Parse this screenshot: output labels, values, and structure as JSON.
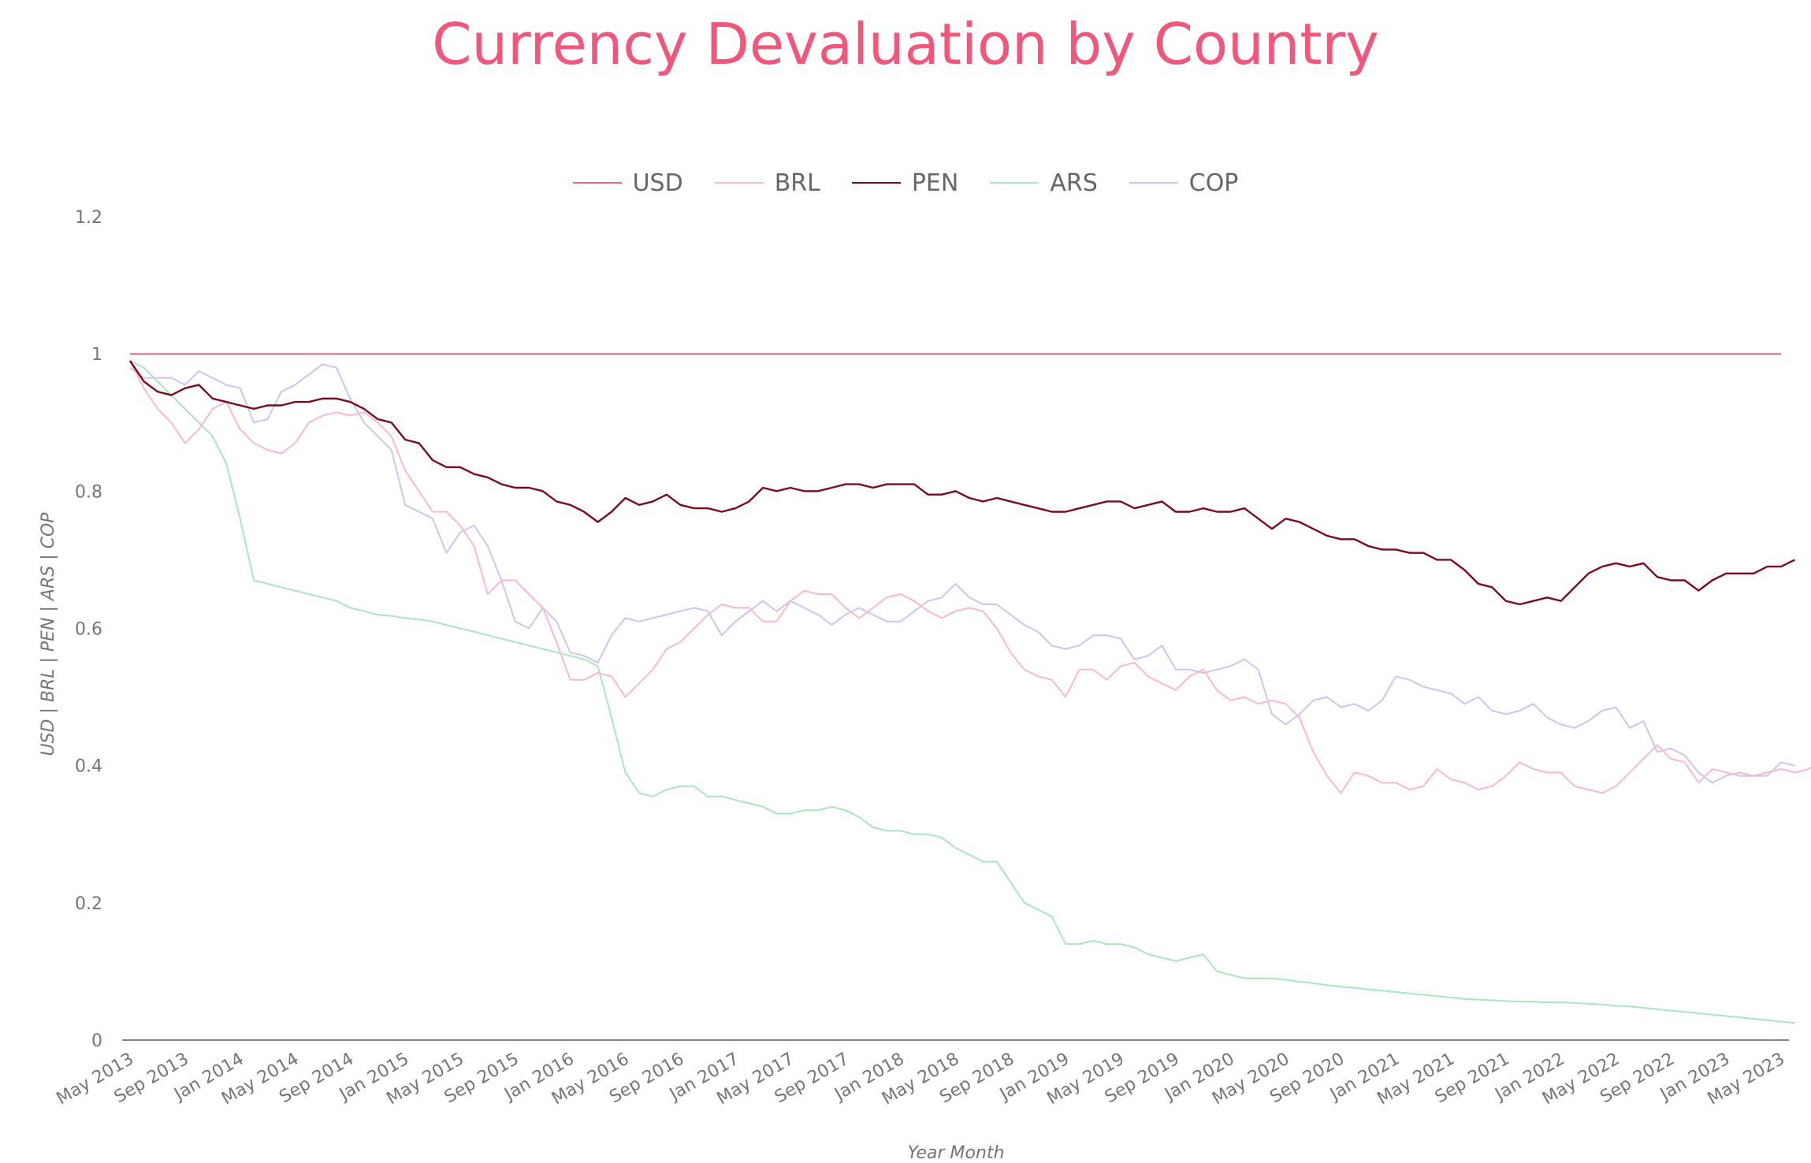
{
  "chart_data": {
    "type": "line",
    "title": "Currency Devaluation  by Country",
    "xlabel": "Year Month",
    "ylabel": "USD | BRL | PEN | ARS | COP",
    "ylim": [
      0,
      1.2
    ],
    "y_ticks": [
      "0",
      "0.2",
      "0.4",
      "0.6",
      "0.8",
      "1",
      "1.2"
    ],
    "grid": false,
    "legend_position": "top",
    "title_color": "#F0577A",
    "x_tick_labels": [
      "May 2013",
      "Sep 2013",
      "Jan 2014",
      "May 2014",
      "Sep 2014",
      "Jan 2015",
      "May 2015",
      "Sep 2015",
      "Jan 2016",
      "May 2016",
      "Sep 2016",
      "Jan 2017",
      "May 2017",
      "Sep 2017",
      "Jan 2018",
      "May 2018",
      "Sep 2018",
      "Jan 2019",
      "May 2019",
      "Sep 2019",
      "Jan 2020",
      "May 2020",
      "Sep 2020",
      "Jan 2021",
      "May 2021",
      "Sep 2021",
      "Jan 2022",
      "May 2022",
      "Sep 2022",
      "Jan 2023",
      "May 2023"
    ],
    "series": [
      {
        "name": "USD",
        "color": "#EC6685",
        "values": [
          1,
          1,
          1,
          1,
          1,
          1,
          1,
          1,
          1,
          1,
          1,
          1,
          1,
          1,
          1,
          1,
          1,
          1,
          1,
          1,
          1,
          1,
          1,
          1,
          1,
          1,
          1,
          1,
          1,
          1,
          1,
          1,
          1,
          1,
          1,
          1,
          1,
          1,
          1,
          1,
          1,
          1,
          1,
          1,
          1,
          1,
          1,
          1,
          1,
          1,
          1,
          1,
          1,
          1,
          1,
          1,
          1,
          1,
          1,
          1,
          1,
          1,
          1,
          1,
          1,
          1,
          1,
          1,
          1,
          1,
          1,
          1,
          1,
          1,
          1,
          1,
          1,
          1,
          1,
          1,
          1,
          1,
          1,
          1,
          1,
          1,
          1,
          1,
          1,
          1,
          1,
          1,
          1,
          1,
          1,
          1,
          1,
          1,
          1,
          1,
          1,
          1,
          1,
          1,
          1,
          1,
          1,
          1,
          1,
          1,
          1,
          1,
          1,
          1,
          1,
          1,
          1,
          1,
          1,
          1,
          1
        ]
      },
      {
        "name": "BRL",
        "color": "#F9B9CB",
        "values": [
          0.99,
          0.95,
          0.92,
          0.9,
          0.87,
          0.89,
          0.92,
          0.93,
          0.89,
          0.87,
          0.86,
          0.855,
          0.87,
          0.9,
          0.91,
          0.915,
          0.91,
          0.915,
          0.9,
          0.88,
          0.83,
          0.8,
          0.77,
          0.77,
          0.75,
          0.72,
          0.65,
          0.67,
          0.67,
          0.65,
          0.63,
          0.58,
          0.525,
          0.525,
          0.535,
          0.53,
          0.5,
          0.52,
          0.54,
          0.57,
          0.58,
          0.6,
          0.62,
          0.635,
          0.63,
          0.63,
          0.61,
          0.61,
          0.64,
          0.655,
          0.65,
          0.65,
          0.63,
          0.615,
          0.63,
          0.645,
          0.65,
          0.64,
          0.625,
          0.615,
          0.625,
          0.63,
          0.625,
          0.6,
          0.565,
          0.54,
          0.53,
          0.525,
          0.5,
          0.54,
          0.54,
          0.525,
          0.545,
          0.55,
          0.53,
          0.52,
          0.51,
          0.53,
          0.54,
          0.51,
          0.495,
          0.5,
          0.49,
          0.495,
          0.49,
          0.47,
          0.42,
          0.385,
          0.36,
          0.39,
          0.385,
          0.375,
          0.375,
          0.365,
          0.37,
          0.395,
          0.38,
          0.375,
          0.365,
          0.37,
          0.385,
          0.405,
          0.395,
          0.39,
          0.39,
          0.37,
          0.365,
          0.36,
          0.37,
          0.39,
          0.41,
          0.43,
          0.41,
          0.405,
          0.375,
          0.395,
          0.39,
          0.385,
          0.385,
          0.39,
          0.395,
          0.39,
          0.395,
          0.41
        ]
      },
      {
        "name": "PEN",
        "color": "#7B0A1E",
        "values": [
          0.99,
          0.96,
          0.945,
          0.94,
          0.95,
          0.955,
          0.935,
          0.93,
          0.925,
          0.92,
          0.925,
          0.925,
          0.93,
          0.93,
          0.935,
          0.935,
          0.93,
          0.92,
          0.905,
          0.9,
          0.875,
          0.87,
          0.845,
          0.835,
          0.835,
          0.825,
          0.82,
          0.81,
          0.805,
          0.805,
          0.8,
          0.785,
          0.78,
          0.77,
          0.755,
          0.77,
          0.79,
          0.78,
          0.785,
          0.795,
          0.78,
          0.775,
          0.775,
          0.77,
          0.775,
          0.785,
          0.805,
          0.8,
          0.805,
          0.8,
          0.8,
          0.805,
          0.81,
          0.81,
          0.805,
          0.81,
          0.81,
          0.81,
          0.795,
          0.795,
          0.8,
          0.79,
          0.785,
          0.79,
          0.785,
          0.78,
          0.775,
          0.77,
          0.77,
          0.775,
          0.78,
          0.785,
          0.785,
          0.775,
          0.78,
          0.785,
          0.77,
          0.77,
          0.775,
          0.77,
          0.77,
          0.775,
          0.76,
          0.745,
          0.76,
          0.755,
          0.745,
          0.735,
          0.73,
          0.73,
          0.72,
          0.715,
          0.715,
          0.71,
          0.71,
          0.7,
          0.7,
          0.685,
          0.665,
          0.66,
          0.64,
          0.635,
          0.64,
          0.645,
          0.64,
          0.66,
          0.68,
          0.69,
          0.695,
          0.69,
          0.695,
          0.675,
          0.67,
          0.67,
          0.655,
          0.67,
          0.68,
          0.68,
          0.68,
          0.69,
          0.69,
          0.7
        ]
      },
      {
        "name": "ARS",
        "color": "#A8E6BC",
        "values": [
          0.99,
          0.98,
          0.96,
          0.94,
          0.92,
          0.9,
          0.88,
          0.84,
          0.76,
          0.67,
          0.665,
          0.66,
          0.655,
          0.65,
          0.645,
          0.64,
          0.63,
          0.625,
          0.62,
          0.618,
          0.615,
          0.613,
          0.61,
          0.605,
          0.6,
          0.595,
          0.59,
          0.585,
          0.58,
          0.575,
          0.57,
          0.565,
          0.56,
          0.555,
          0.545,
          0.47,
          0.39,
          0.36,
          0.355,
          0.365,
          0.37,
          0.37,
          0.355,
          0.355,
          0.35,
          0.345,
          0.34,
          0.33,
          0.33,
          0.335,
          0.335,
          0.34,
          0.335,
          0.325,
          0.31,
          0.305,
          0.305,
          0.3,
          0.3,
          0.295,
          0.28,
          0.27,
          0.26,
          0.26,
          0.23,
          0.2,
          0.19,
          0.18,
          0.14,
          0.14,
          0.145,
          0.14,
          0.14,
          0.135,
          0.125,
          0.12,
          0.115,
          0.12,
          0.125,
          0.1,
          0.095,
          0.09,
          0.09,
          0.09,
          0.088,
          0.085,
          0.083,
          0.08,
          0.078,
          0.076,
          0.074,
          0.072,
          0.07,
          0.068,
          0.066,
          0.064,
          0.062,
          0.06,
          0.059,
          0.058,
          0.057,
          0.056,
          0.056,
          0.055,
          0.055,
          0.054,
          0.053,
          0.052,
          0.05,
          0.049,
          0.047,
          0.045,
          0.043,
          0.041,
          0.039,
          0.037,
          0.035,
          0.033,
          0.031,
          0.029,
          0.027,
          0.025
        ]
      },
      {
        "name": "COP",
        "color": "#C9C5F4",
        "values": [
          0.98,
          0.965,
          0.965,
          0.965,
          0.955,
          0.975,
          0.965,
          0.955,
          0.95,
          0.9,
          0.905,
          0.945,
          0.955,
          0.97,
          0.985,
          0.98,
          0.935,
          0.9,
          0.88,
          0.86,
          0.78,
          0.77,
          0.76,
          0.71,
          0.74,
          0.75,
          0.72,
          0.67,
          0.61,
          0.6,
          0.63,
          0.61,
          0.565,
          0.56,
          0.55,
          0.59,
          0.615,
          0.61,
          0.615,
          0.62,
          0.625,
          0.63,
          0.625,
          0.59,
          0.61,
          0.625,
          0.64,
          0.625,
          0.64,
          0.63,
          0.62,
          0.605,
          0.62,
          0.63,
          0.62,
          0.61,
          0.61,
          0.625,
          0.64,
          0.645,
          0.665,
          0.645,
          0.635,
          0.635,
          0.62,
          0.605,
          0.595,
          0.575,
          0.57,
          0.575,
          0.59,
          0.59,
          0.585,
          0.555,
          0.56,
          0.575,
          0.54,
          0.54,
          0.535,
          0.54,
          0.545,
          0.555,
          0.54,
          0.475,
          0.46,
          0.475,
          0.495,
          0.5,
          0.485,
          0.49,
          0.48,
          0.495,
          0.53,
          0.525,
          0.515,
          0.51,
          0.505,
          0.49,
          0.5,
          0.48,
          0.475,
          0.48,
          0.49,
          0.47,
          0.46,
          0.455,
          0.465,
          0.48,
          0.485,
          0.455,
          0.465,
          0.42,
          0.425,
          0.415,
          0.39,
          0.375,
          0.385,
          0.39,
          0.385,
          0.385,
          0.405,
          0.4
        ]
      }
    ]
  }
}
